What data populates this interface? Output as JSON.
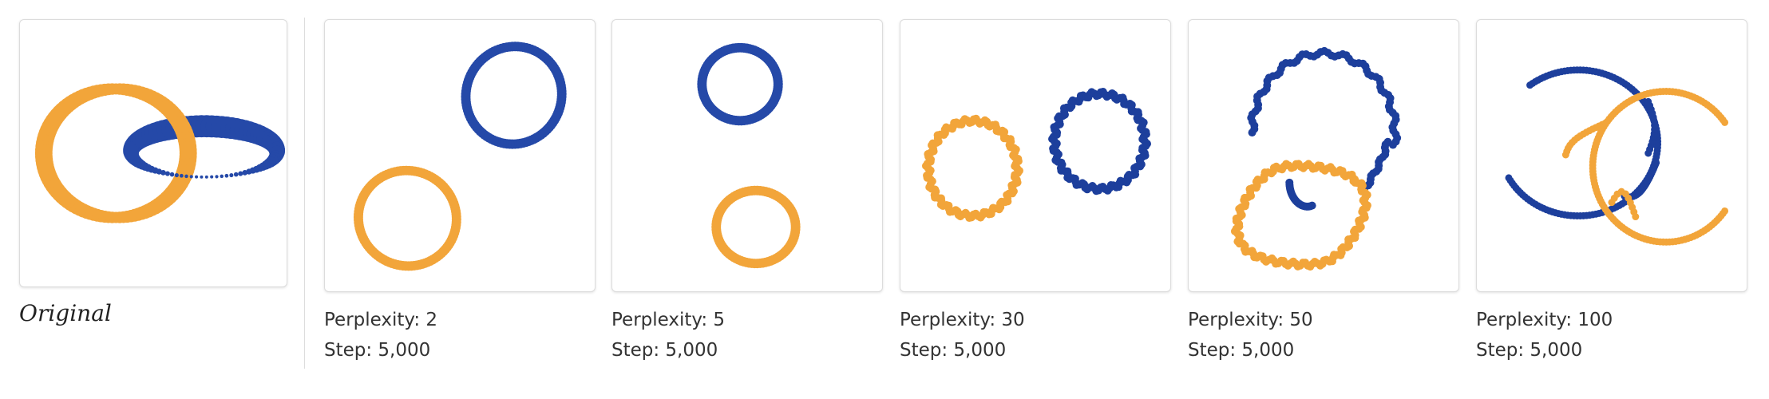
{
  "original": {
    "label": "Original"
  },
  "colors": {
    "orange": "#f2a53a",
    "blue": "#2549a8",
    "blue_dark": "#1d3f9c"
  },
  "panels": [
    {
      "perplexity_text": "Perplexity: 2",
      "step_text": "Step: 5,000"
    },
    {
      "perplexity_text": "Perplexity: 5",
      "step_text": "Step: 5,000"
    },
    {
      "perplexity_text": "Perplexity: 30",
      "step_text": "Step: 5,000"
    },
    {
      "perplexity_text": "Perplexity: 50",
      "step_text": "Step: 5,000"
    },
    {
      "perplexity_text": "Perplexity: 100",
      "step_text": "Step: 5,000"
    }
  ]
}
